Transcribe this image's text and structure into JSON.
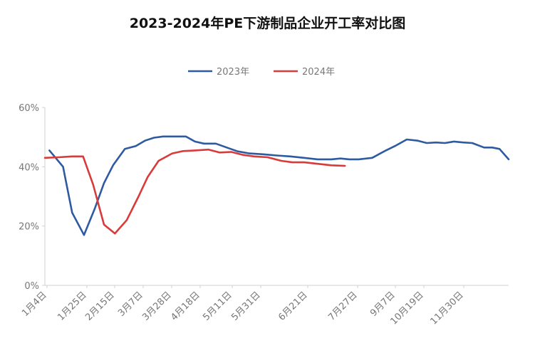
{
  "chart_data": {
    "type": "line",
    "title": "2023-2024年PE下游制品企业开工率对比图",
    "xlabel": "",
    "ylabel": "",
    "ylim": [
      0,
      60
    ],
    "yticks": [
      "0%",
      "20%",
      "40%",
      "60%"
    ],
    "xticks": [
      "1月4日",
      "1月25日",
      "2月15日",
      "3月7日",
      "3月28日",
      "4月18日",
      "5月11日",
      "5月31日",
      "6月21日",
      "7月27日",
      "9月7日",
      "10月19日",
      "11月30日"
    ],
    "grid": false,
    "legend_position": "top",
    "x_week_range": [
      0,
      50
    ],
    "series": [
      {
        "name": "2023年",
        "color": "#2E5AA0",
        "points": [
          [
            0.5,
            45.5
          ],
          [
            2,
            40
          ],
          [
            3,
            24.5
          ],
          [
            4.3,
            17
          ],
          [
            5.5,
            26
          ],
          [
            6.5,
            34.5
          ],
          [
            7.5,
            40.5
          ],
          [
            8.8,
            46
          ],
          [
            10,
            47
          ],
          [
            11,
            48.8
          ],
          [
            12,
            49.8
          ],
          [
            13,
            50.2
          ],
          [
            14.5,
            50.2
          ],
          [
            15.5,
            50.2
          ],
          [
            16.5,
            48.5
          ],
          [
            17.5,
            47.8
          ],
          [
            18.8,
            47.8
          ],
          [
            20,
            46.5
          ],
          [
            21.2,
            45.2
          ],
          [
            22.5,
            44.5
          ],
          [
            24,
            44.2
          ],
          [
            25.5,
            43.8
          ],
          [
            27,
            43.5
          ],
          [
            28.5,
            43
          ],
          [
            30,
            42.5
          ],
          [
            31.5,
            42.5
          ],
          [
            32.5,
            42.8
          ],
          [
            33.5,
            42.5
          ],
          [
            34.5,
            42.5
          ],
          [
            36,
            43
          ],
          [
            37.5,
            45.5
          ],
          [
            38.5,
            47
          ],
          [
            39.8,
            49.2
          ],
          [
            41,
            48.8
          ],
          [
            42,
            48
          ],
          [
            43,
            48.2
          ],
          [
            44,
            48
          ],
          [
            45,
            48.5
          ],
          [
            46,
            48.2
          ],
          [
            47,
            48
          ],
          [
            48.3,
            46.5
          ],
          [
            49.2,
            46.5
          ],
          [
            50,
            46
          ],
          [
            51,
            42.5
          ]
        ]
      },
      {
        "name": "2024年",
        "color": "#D93A3A",
        "points": [
          [
            0,
            43
          ],
          [
            1.5,
            43.2
          ],
          [
            3,
            43.5
          ],
          [
            4.2,
            43.5
          ],
          [
            5.3,
            34
          ],
          [
            6.5,
            20.5
          ],
          [
            7.7,
            17.5
          ],
          [
            9,
            22
          ],
          [
            10.3,
            30
          ],
          [
            11.3,
            36.5
          ],
          [
            12.5,
            42
          ],
          [
            14,
            44.5
          ],
          [
            15.2,
            45.3
          ],
          [
            16.5,
            45.5
          ],
          [
            18,
            45.8
          ],
          [
            19.2,
            44.8
          ],
          [
            20.5,
            45
          ],
          [
            21.8,
            44
          ],
          [
            23,
            43.5
          ],
          [
            24.5,
            43.2
          ],
          [
            26,
            42
          ],
          [
            27.2,
            41.5
          ],
          [
            28.5,
            41.5
          ],
          [
            30,
            41
          ],
          [
            31.5,
            40.5
          ],
          [
            33,
            40.3
          ]
        ]
      }
    ]
  }
}
